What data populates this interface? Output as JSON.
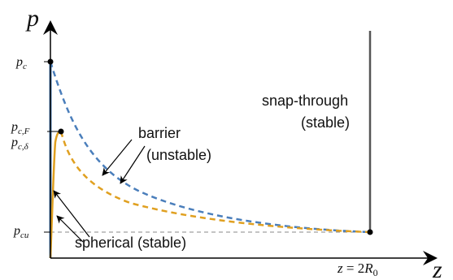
{
  "axes": {
    "y_label": "p",
    "x_label": "z"
  },
  "ticks": {
    "pc": {
      "main": "p",
      "sub": "c"
    },
    "pcF": {
      "main": "p",
      "sub": "c,F"
    },
    "pcdelta": {
      "main": "p",
      "sub": "c,δ"
    },
    "pcu": {
      "main": "p",
      "sub": "cu"
    }
  },
  "x_marker": {
    "lhs": "z",
    "eq": " = 2",
    "rhs": "R",
    "sub": "0"
  },
  "annotations": {
    "barrier_line1": "barrier",
    "barrier_line2": "(unstable)",
    "snap_line1": "snap-through",
    "snap_line2": "(stable)",
    "spherical": "spherical (stable)"
  },
  "colors": {
    "blue": "#4a7ebb",
    "orange": "#e0a020",
    "gray": "#555555",
    "dash_gray": "#888888",
    "axis": "#000000"
  }
}
